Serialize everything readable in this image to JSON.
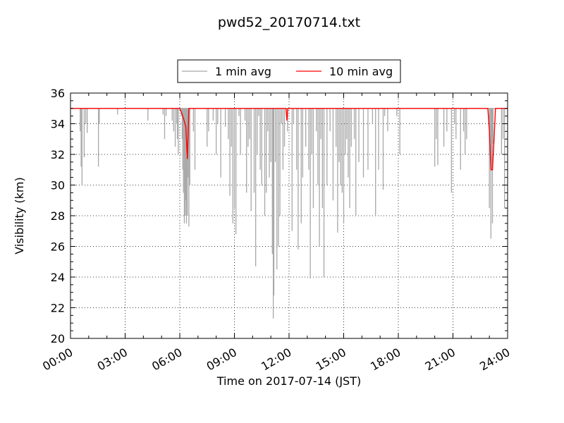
{
  "chart_data": {
    "type": "line",
    "title": "pwd52_20170714.txt",
    "xlabel": "Time on 2017-07-14 (JST)",
    "ylabel": "Visibility (km)",
    "xlim": [
      "00:00",
      "24:00"
    ],
    "ylim": [
      20,
      36
    ],
    "x_ticks": [
      "00:00",
      "03:00",
      "06:00",
      "09:00",
      "12:00",
      "15:00",
      "18:00",
      "21:00",
      "24:00"
    ],
    "y_ticks": [
      "20",
      "22",
      "24",
      "26",
      "28",
      "30",
      "32",
      "34",
      "36"
    ],
    "grid": true,
    "legend_position": "top-center",
    "baseline_km": 35,
    "colors": {
      "one_min": "#a8a8a8",
      "ten_min": "#ff0000"
    },
    "series": [
      {
        "name": "1 min avg",
        "baseline": 35,
        "dips": [
          [
            "00:32",
            33.5
          ],
          [
            "00:35",
            31.2
          ],
          [
            "00:38",
            30.0
          ],
          [
            "00:45",
            31.8
          ],
          [
            "00:50",
            34.0
          ],
          [
            "00:55",
            33.4
          ],
          [
            "01:32",
            31.2
          ],
          [
            "01:35",
            34.0
          ],
          [
            "02:35",
            34.6
          ],
          [
            "04:15",
            34.2
          ],
          [
            "05:05",
            34.6
          ],
          [
            "05:10",
            33.0
          ],
          [
            "05:15",
            34.5
          ],
          [
            "05:35",
            34.2
          ],
          [
            "05:40",
            33.5
          ],
          [
            "05:45",
            32.5
          ],
          [
            "05:50",
            34.0
          ],
          [
            "05:52",
            33.0
          ],
          [
            "05:55",
            32.0
          ],
          [
            "06:05",
            34.5
          ],
          [
            "06:08",
            33.0
          ],
          [
            "06:10",
            31.0
          ],
          [
            "06:12",
            29.5
          ],
          [
            "06:15",
            27.5
          ],
          [
            "06:18",
            28.0
          ],
          [
            "06:20",
            29.0
          ],
          [
            "06:22",
            27.5
          ],
          [
            "06:25",
            28.0
          ],
          [
            "06:27",
            30.5
          ],
          [
            "06:30",
            27.3
          ],
          [
            "06:33",
            30.0
          ],
          [
            "06:45",
            33.5
          ],
          [
            "06:50",
            31.0
          ],
          [
            "07:30",
            32.5
          ],
          [
            "07:35",
            33.5
          ],
          [
            "07:50",
            34.2
          ],
          [
            "08:00",
            32.0
          ],
          [
            "08:05",
            34.0
          ],
          [
            "08:15",
            30.5
          ],
          [
            "08:30",
            33.8
          ],
          [
            "08:40",
            33.0
          ],
          [
            "08:45",
            29.3
          ],
          [
            "08:50",
            32.5
          ],
          [
            "08:55",
            27.5
          ],
          [
            "09:00",
            28.5
          ],
          [
            "09:05",
            26.8
          ],
          [
            "09:15",
            34.5
          ],
          [
            "09:20",
            32.0
          ],
          [
            "09:35",
            34.2
          ],
          [
            "09:40",
            29.5
          ],
          [
            "09:45",
            32.5
          ],
          [
            "09:50",
            33.0
          ],
          [
            "09:55",
            28.3
          ],
          [
            "10:05",
            29.5
          ],
          [
            "10:10",
            24.7
          ],
          [
            "10:15",
            32.0
          ],
          [
            "10:20",
            34.5
          ],
          [
            "10:25",
            31.0
          ],
          [
            "10:30",
            30.0
          ],
          [
            "10:40",
            28.0
          ],
          [
            "10:45",
            29.5
          ],
          [
            "10:50",
            33.5
          ],
          [
            "10:55",
            30.5
          ],
          [
            "11:00",
            31.5
          ],
          [
            "11:05",
            25.5
          ],
          [
            "11:08",
            21.3
          ],
          [
            "11:10",
            22.8
          ],
          [
            "11:15",
            31.5
          ],
          [
            "11:20",
            24.5
          ],
          [
            "11:25",
            26.0
          ],
          [
            "11:30",
            28.0
          ],
          [
            "11:35",
            34.0
          ],
          [
            "11:40",
            31.0
          ],
          [
            "11:45",
            32.5
          ],
          [
            "11:55",
            33.5
          ],
          [
            "12:10",
            27.0
          ],
          [
            "12:15",
            34.0
          ],
          [
            "12:25",
            31.0
          ],
          [
            "12:30",
            25.8
          ],
          [
            "12:40",
            27.5
          ],
          [
            "12:45",
            30.5
          ],
          [
            "12:55",
            32.5
          ],
          [
            "13:05",
            31.0
          ],
          [
            "13:10",
            23.9
          ],
          [
            "13:15",
            32.0
          ],
          [
            "13:20",
            28.5
          ],
          [
            "13:30",
            33.5
          ],
          [
            "13:35",
            30.0
          ],
          [
            "13:40",
            26.0
          ],
          [
            "13:45",
            33.0
          ],
          [
            "13:50",
            28.5
          ],
          [
            "13:55",
            24.0
          ],
          [
            "14:05",
            30.0
          ],
          [
            "14:15",
            33.5
          ],
          [
            "14:25",
            29.0
          ],
          [
            "14:35",
            32.5
          ],
          [
            "14:40",
            26.9
          ],
          [
            "14:45",
            31.5
          ],
          [
            "14:50",
            30.0
          ],
          [
            "14:55",
            29.5
          ],
          [
            "15:00",
            27.5
          ],
          [
            "15:05",
            32.0
          ],
          [
            "15:10",
            33.0
          ],
          [
            "15:15",
            30.5
          ],
          [
            "15:20",
            28.5
          ],
          [
            "15:25",
            32.5
          ],
          [
            "15:35",
            33.0
          ],
          [
            "15:40",
            28.0
          ],
          [
            "15:50",
            31.5
          ],
          [
            "16:05",
            30.5
          ],
          [
            "16:20",
            31.0
          ],
          [
            "16:35",
            34.0
          ],
          [
            "16:45",
            28.0
          ],
          [
            "16:55",
            31.0
          ],
          [
            "17:10",
            29.7
          ],
          [
            "17:15",
            34.5
          ],
          [
            "17:25",
            33.5
          ],
          [
            "17:55",
            34.5
          ],
          [
            "18:05",
            32.0
          ],
          [
            "20:00",
            31.2
          ],
          [
            "20:05",
            33.0
          ],
          [
            "20:10",
            31.3
          ],
          [
            "20:30",
            32.5
          ],
          [
            "20:40",
            33.5
          ],
          [
            "20:55",
            29.5
          ],
          [
            "21:05",
            34.0
          ],
          [
            "21:10",
            33.0
          ],
          [
            "21:25",
            31.0
          ],
          [
            "21:35",
            33.5
          ],
          [
            "21:40",
            32.0
          ],
          [
            "21:45",
            33.0
          ],
          [
            "23:00",
            28.5
          ],
          [
            "23:02",
            32.0
          ],
          [
            "23:05",
            26.5
          ],
          [
            "23:08",
            31.0
          ],
          [
            "23:10",
            27.5
          ],
          [
            "23:12",
            32.7
          ],
          [
            "23:40",
            32.0
          ],
          [
            "23:45",
            33.0
          ],
          [
            "23:50",
            28.5
          ]
        ]
      },
      {
        "name": "10 min avg",
        "baseline": 35,
        "points": [
          [
            "00:00",
            35.0
          ],
          [
            "06:00",
            35.0
          ],
          [
            "06:10",
            34.5
          ],
          [
            "06:20",
            33.8
          ],
          [
            "06:25",
            31.7
          ],
          [
            "06:30",
            35.0
          ],
          [
            "11:50",
            35.0
          ],
          [
            "11:53",
            34.2
          ],
          [
            "11:56",
            35.0
          ],
          [
            "22:55",
            35.0
          ],
          [
            "23:00",
            33.5
          ],
          [
            "23:05",
            31.0
          ],
          [
            "23:10",
            31.0
          ],
          [
            "23:15",
            32.8
          ],
          [
            "23:20",
            35.0
          ],
          [
            "24:00",
            35.0
          ]
        ]
      }
    ]
  }
}
